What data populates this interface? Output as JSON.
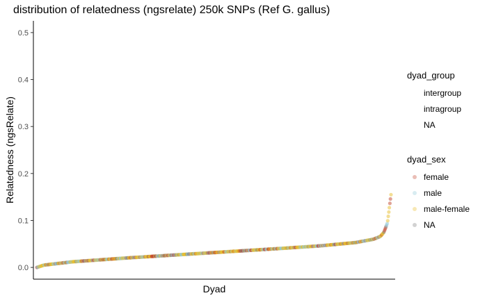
{
  "chart_data": {
    "type": "scatter",
    "title": "distribution of relatedness (ngsrelate) 250k SNPs (Ref G. gallus)",
    "xlabel": "Dyad",
    "ylabel": "Relatedness (ngsRelate)",
    "ylim": [
      -0.025,
      0.525
    ],
    "yticks": [
      "0.0",
      "0.1",
      "0.2",
      "0.3",
      "0.4",
      "0.5"
    ],
    "ytick_values": [
      0.0,
      0.1,
      0.2,
      0.3,
      0.4,
      0.5
    ],
    "grid": false,
    "legend_position": "right",
    "curve": {
      "x": [
        0,
        0.02,
        0.1,
        0.25,
        0.4,
        0.55,
        0.7,
        0.8,
        0.9,
        0.95,
        0.97,
        0.98,
        0.99,
        1.0
      ],
      "y": [
        0.0,
        0.005,
        0.012,
        0.02,
        0.027,
        0.034,
        0.041,
        0.046,
        0.053,
        0.06,
        0.066,
        0.075,
        0.095,
        0.155
      ]
    },
    "series": [
      {
        "name": "female",
        "color": "#c2462d"
      },
      {
        "name": "male",
        "color": "#8fc8d8"
      },
      {
        "name": "male-female",
        "color": "#e8bd2c"
      },
      {
        "name": "NA",
        "color": "#7f7f7f"
      }
    ],
    "series_weights": [
      0.2,
      0.3,
      0.42,
      0.08
    ],
    "legends": [
      {
        "title": "dyad_group",
        "entries": [
          "intergroup",
          "intragroup",
          "NA"
        ]
      },
      {
        "title": "dyad_sex",
        "entries": [
          "female",
          "male",
          "male-female",
          "NA"
        ]
      }
    ]
  }
}
